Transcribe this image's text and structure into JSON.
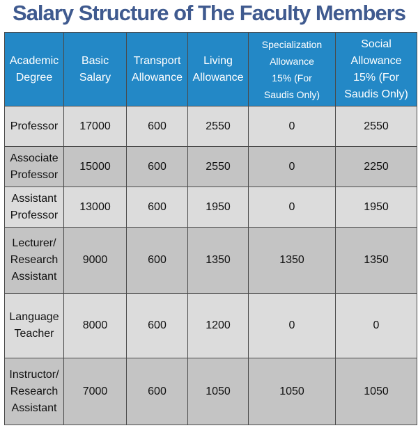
{
  "title": "Salary Structure of The Faculty Members",
  "table": {
    "headers": [
      "Academic\nDegree",
      "Basic\nSalary",
      "Transport\nAllowance",
      "Living\nAllowance",
      "Specialization\nAllowance\n15% (For\nSaudis Only)",
      "Social\nAllowance\n15% (For\nSaudis Only)"
    ],
    "rows": [
      [
        "Professor",
        "17000",
        "600",
        "2550",
        "0",
        "2550"
      ],
      [
        "Associate\nProfessor",
        "15000",
        "600",
        "2550",
        "0",
        "2250"
      ],
      [
        "Assistant\nProfessor",
        "13000",
        "600",
        "1950",
        "0",
        "1950"
      ],
      [
        "Lecturer/\nResearch\nAssistant",
        "9000",
        "600",
        "1350",
        "1350",
        "1350"
      ],
      [
        "Language\nTeacher",
        "8000",
        "600",
        "1200",
        "0",
        "0"
      ],
      [
        "Instructor/\nResearch\nAssistant",
        "7000",
        "600",
        "1050",
        "1050",
        "1050"
      ]
    ]
  },
  "colors": {
    "title": "#3f5a8f",
    "header_bg": "#2388c6",
    "row_light": "#dcdcdc",
    "row_dark": "#c4c4c4"
  }
}
